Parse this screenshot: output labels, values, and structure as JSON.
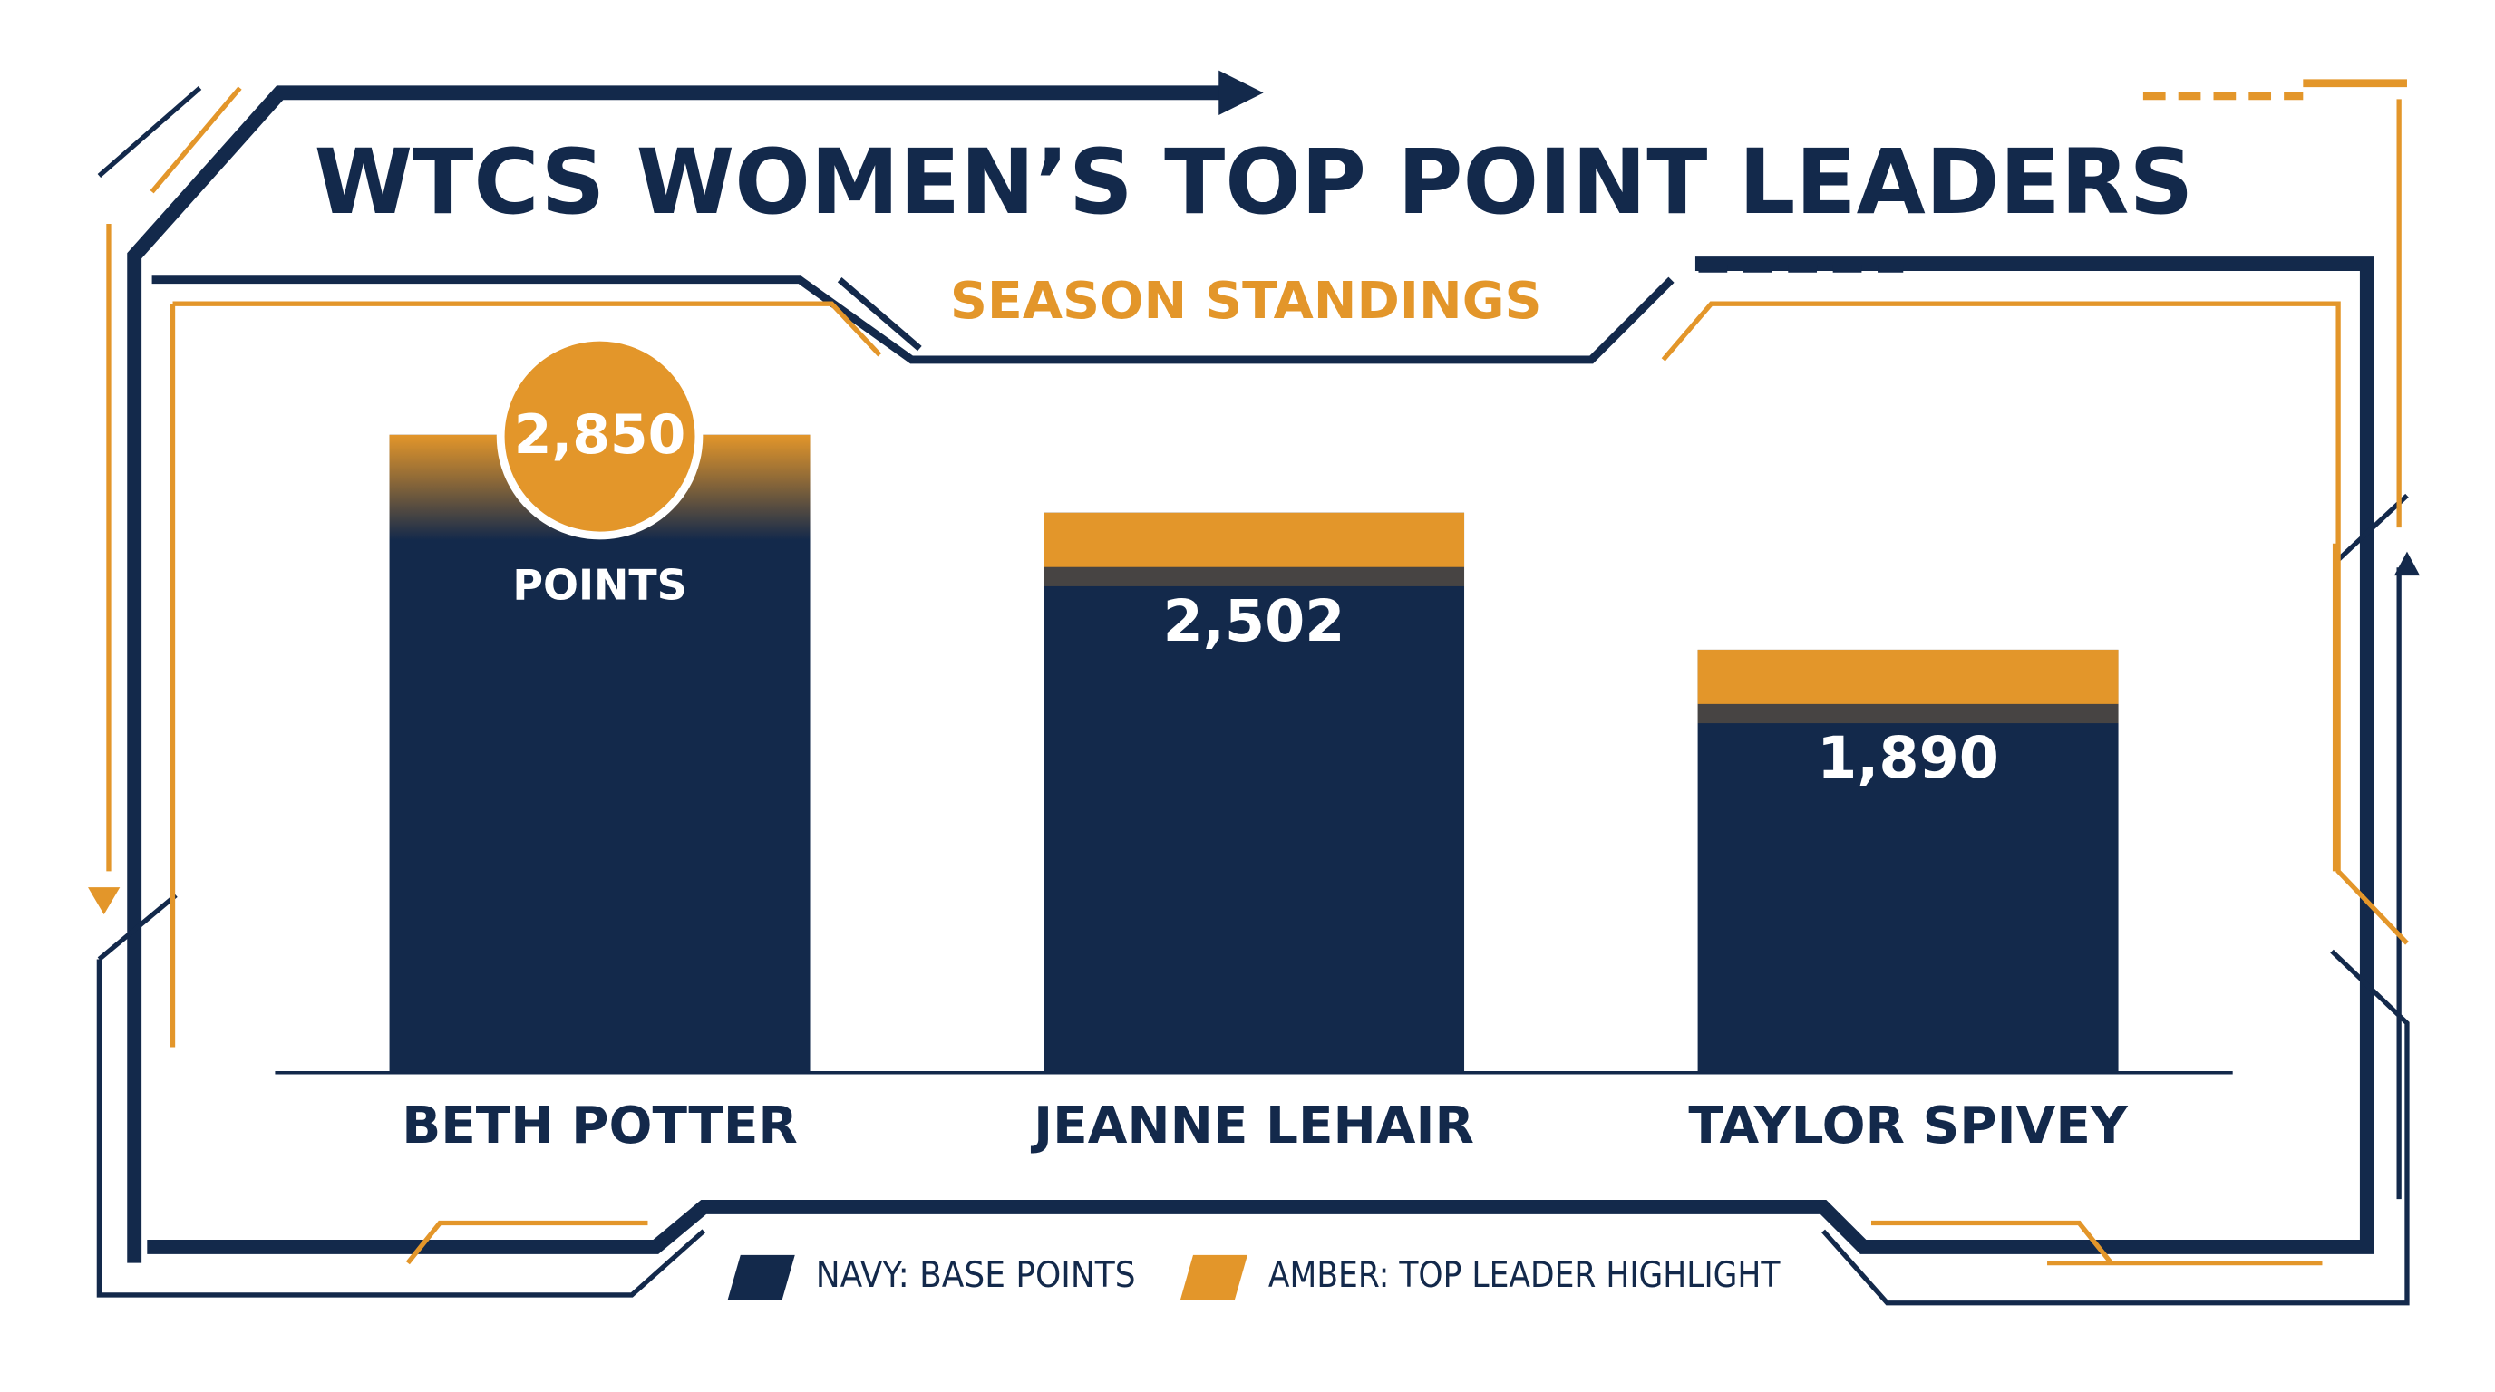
{
  "chart_data": {
    "type": "bar",
    "title": "WTCS WOMEN’S TOP POINT LEADERS",
    "subtitle": "SEASON STANDINGS",
    "categories": [
      "BETH POTTER",
      "JEANNE LEHAIR",
      "TAYLOR SPIVEY"
    ],
    "values": [
      2850,
      2502,
      1890
    ],
    "value_labels": [
      "2,850",
      "2,502",
      "1,890"
    ],
    "annotation": "POINTS",
    "color": "#13294b",
    "highlight_color": "#e3962a",
    "legend": [
      {
        "label": "NAVY: BASE POINTS",
        "color": "#13294b"
      },
      {
        "label": "AMBER: TOP LEADER HIGHLIGHT",
        "color": "#e3962a"
      }
    ]
  }
}
